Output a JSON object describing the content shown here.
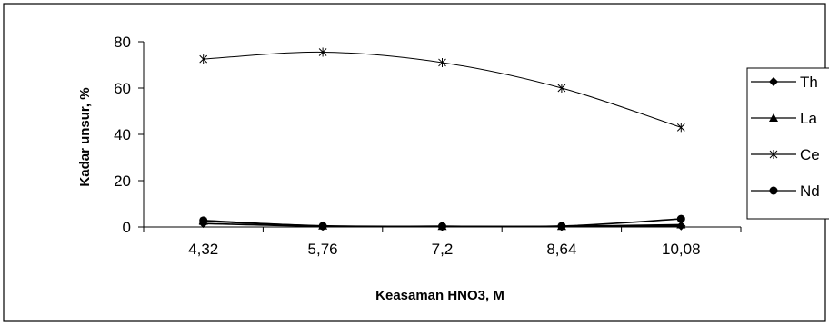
{
  "chart_data": {
    "type": "line",
    "title": "",
    "xlabel": "Keasaman HNO3, M",
    "ylabel": "Kadar unsur, %",
    "categories": [
      "4,32",
      "5,76",
      "7,2",
      "8,64",
      "10,08"
    ],
    "ylim": [
      0,
      80
    ],
    "yticks": [
      "0",
      "20",
      "40",
      "60",
      "80"
    ],
    "grid": false,
    "legend": "right",
    "series": [
      {
        "name": "Th",
        "marker": "diamond",
        "color": "#000000",
        "values": [
          1.5,
          0.3,
          0.2,
          0.2,
          0.5
        ]
      },
      {
        "name": "La",
        "marker": "triangle",
        "color": "#000000",
        "values": [
          2.5,
          0.5,
          0.3,
          0.3,
          1.0
        ]
      },
      {
        "name": "Ce",
        "marker": "star",
        "color": "#000000",
        "values": [
          72.5,
          75.5,
          71,
          60,
          43
        ]
      },
      {
        "name": "Nd",
        "marker": "circle",
        "color": "#000000",
        "values": [
          2.8,
          0.4,
          0.3,
          0.4,
          3.5
        ]
      }
    ]
  }
}
